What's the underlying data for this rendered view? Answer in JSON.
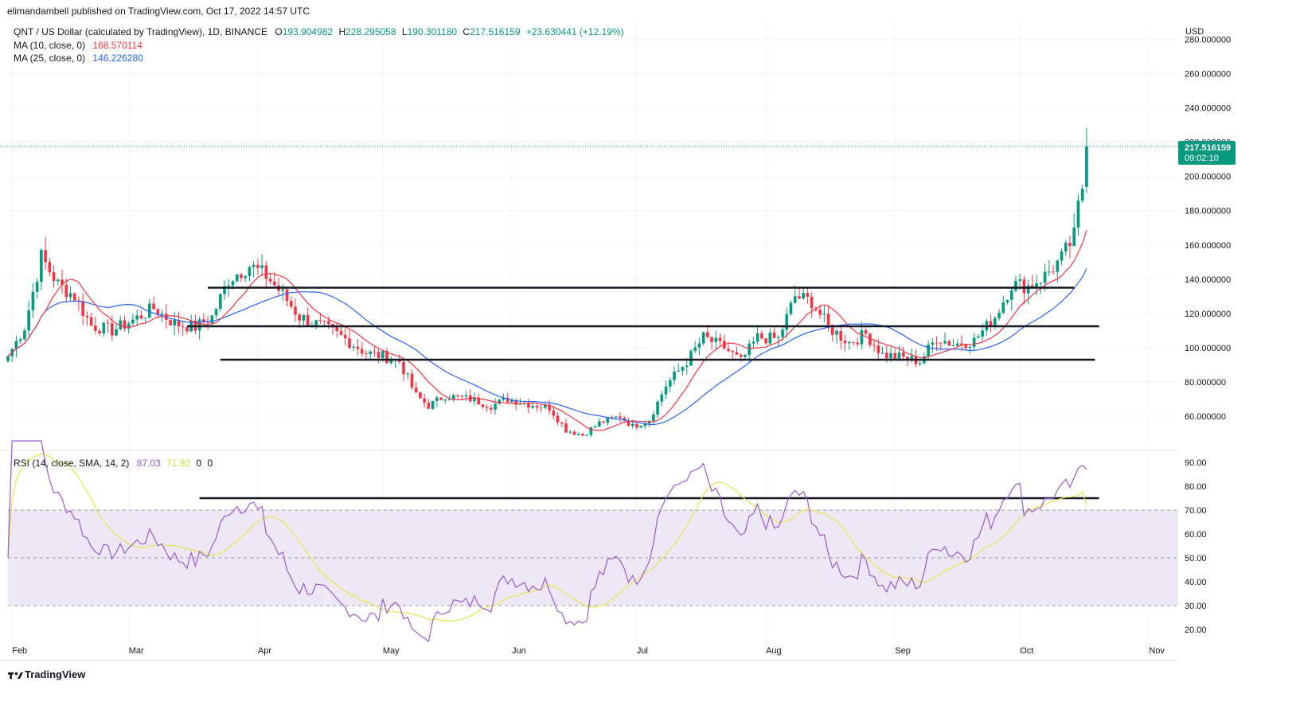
{
  "publisher": "elimandambell published on TradingView.com, Oct 17, 2022 14:57 UTC",
  "symbol_line": {
    "title": "QNT / US Dollar (calculated by TradingView), 1D, BINANCE",
    "open_label": "O",
    "open": "193.904982",
    "high_label": "H",
    "high": "228.295058",
    "low_label": "L",
    "low": "190.301180",
    "close_label": "C",
    "close": "217.516159",
    "change": "+23.630441 (+12.19%)"
  },
  "ma10": {
    "label": "MA (10, close, 0)",
    "value": "168.570114",
    "color": "#f23645"
  },
  "ma25": {
    "label": "MA (25, close, 0)",
    "value": "146.226280",
    "color": "#2962ff"
  },
  "rsi_header": {
    "label": "RSI (14, close, SMA, 14, 2)",
    "rsi": "87.03",
    "sma": "71.92",
    "z1": "0",
    "z2": "0"
  },
  "price_tag": {
    "price": "217.516159",
    "countdown": "09:02:10",
    "color": "#089981"
  },
  "currency": "USD",
  "footer_logo": "TradingView",
  "colors": {
    "up": "#089981",
    "down": "#f23645",
    "rsi": "#9b59d0",
    "rsi_sma": "#e6e64c",
    "rsi_band": "#ede7f6"
  },
  "chart_data": [
    {
      "type": "candlestick",
      "title": "QNT / US Dollar (calculated by TradingView), 1D, BINANCE",
      "x_range": [
        "2022-01-31",
        "2022-11-08"
      ],
      "x_ticks": [
        "Feb",
        "Mar",
        "Apr",
        "May",
        "Jun",
        "Jul",
        "Aug",
        "Sep",
        "Oct",
        "Nov"
      ],
      "ylim": [
        40,
        290
      ],
      "y_ticks": [
        "60.000000",
        "80.000000",
        "100.000000",
        "120.000000",
        "140.000000",
        "160.000000",
        "180.000000",
        "200.000000",
        "220.000000",
        "240.000000",
        "260.000000",
        "280.000000"
      ],
      "grid": true,
      "close_anchors": [
        [
          "2022-01-31",
          95
        ],
        [
          "2022-02-04",
          112
        ],
        [
          "2022-02-08",
          153
        ],
        [
          "2022-02-12",
          137
        ],
        [
          "2022-02-16",
          130
        ],
        [
          "2022-02-20",
          113
        ],
        [
          "2022-02-25",
          110
        ],
        [
          "2022-03-02",
          116
        ],
        [
          "2022-03-07",
          123
        ],
        [
          "2022-03-12",
          114
        ],
        [
          "2022-03-17",
          112
        ],
        [
          "2022-03-21",
          118
        ],
        [
          "2022-03-25",
          140
        ],
        [
          "2022-03-30",
          148
        ],
        [
          "2022-04-03",
          142
        ],
        [
          "2022-04-07",
          131
        ],
        [
          "2022-04-11",
          118
        ],
        [
          "2022-04-17",
          112
        ],
        [
          "2022-04-22",
          105
        ],
        [
          "2022-04-27",
          97
        ],
        [
          "2022-05-01",
          95
        ],
        [
          "2022-05-05",
          92
        ],
        [
          "2022-05-09",
          72
        ],
        [
          "2022-05-12",
          66
        ],
        [
          "2022-05-16",
          72
        ],
        [
          "2022-05-22",
          70
        ],
        [
          "2022-05-27",
          66
        ],
        [
          "2022-05-31",
          70
        ],
        [
          "2022-06-05",
          67
        ],
        [
          "2022-06-10",
          65
        ],
        [
          "2022-06-14",
          52
        ],
        [
          "2022-06-18",
          49
        ],
        [
          "2022-06-22",
          56
        ],
        [
          "2022-06-27",
          60
        ],
        [
          "2022-06-30",
          54
        ],
        [
          "2022-07-04",
          58
        ],
        [
          "2022-07-08",
          78
        ],
        [
          "2022-07-13",
          92
        ],
        [
          "2022-07-17",
          106
        ],
        [
          "2022-07-22",
          100
        ],
        [
          "2022-07-26",
          92
        ],
        [
          "2022-07-30",
          106
        ],
        [
          "2022-08-04",
          105
        ],
        [
          "2022-08-08",
          130
        ],
        [
          "2022-08-12",
          127
        ],
        [
          "2022-08-16",
          112
        ],
        [
          "2022-08-21",
          103
        ],
        [
          "2022-08-25",
          108
        ],
        [
          "2022-08-29",
          96
        ],
        [
          "2022-09-03",
          94
        ],
        [
          "2022-09-07",
          92
        ],
        [
          "2022-09-11",
          106
        ],
        [
          "2022-09-15",
          102
        ],
        [
          "2022-09-20",
          104
        ],
        [
          "2022-09-25",
          118
        ],
        [
          "2022-09-29",
          137
        ],
        [
          "2022-10-03",
          136
        ],
        [
          "2022-10-07",
          142
        ],
        [
          "2022-10-11",
          152
        ],
        [
          "2022-10-14",
          165
        ],
        [
          "2022-10-15",
          182
        ],
        [
          "2022-10-16",
          194
        ],
        [
          "2022-10-17",
          217.516159
        ]
      ],
      "last_candle": {
        "date": "2022-10-17",
        "open": 193.904982,
        "high": 228.295058,
        "low": 190.30118,
        "close": 217.516159
      },
      "series": [
        {
          "name": "MA (10, close, 0)",
          "last": 168.570114
        },
        {
          "name": "MA (25, close, 0)",
          "last": 146.22628
        }
      ],
      "annotations": [
        {
          "type": "horizontal-line",
          "from": "2022-03-20",
          "to": "2022-10-14",
          "y": 135
        },
        {
          "type": "horizontal-line",
          "from": "2022-03-15",
          "to": "2022-10-20",
          "y": 112.5
        },
        {
          "type": "horizontal-line",
          "from": "2022-03-23",
          "to": "2022-10-19",
          "y": 93
        }
      ]
    },
    {
      "type": "line",
      "title": "RSI (14, close, SMA, 14, 2)",
      "ylim": [
        15,
        95
      ],
      "y_ticks": [
        "20.00",
        "30.00",
        "40.00",
        "50.00",
        "60.00",
        "70.00",
        "80.00",
        "90.00"
      ],
      "bands": [
        30,
        50,
        70
      ],
      "series": [
        {
          "name": "RSI",
          "last": 87.03
        },
        {
          "name": "SMA",
          "last": 71.92
        }
      ],
      "annotations": [
        {
          "type": "horizontal-line",
          "from": "2022-03-18",
          "to": "2022-10-20",
          "y": 75
        }
      ]
    }
  ]
}
